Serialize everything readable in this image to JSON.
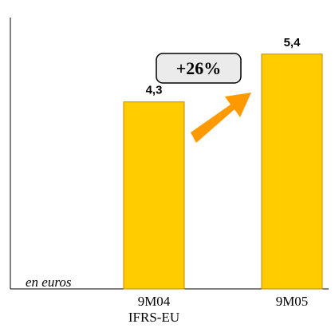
{
  "chart_data": {
    "type": "bar",
    "categories": [
      "9M04",
      "9M05"
    ],
    "category_sublabels": [
      "IFRS-EU",
      ""
    ],
    "values": [
      4.3,
      5.4
    ],
    "value_labels": [
      "4,3",
      "5,4"
    ],
    "unit_label": "en euros",
    "annotation": "+26%",
    "title": "",
    "xlabel": "",
    "ylabel": "",
    "ylim": [
      0,
      6.24
    ],
    "grid": false,
    "bar_color": "#FFCC00",
    "bar_edge_color": "#C08A00",
    "arrow_color": "#FF9900"
  }
}
